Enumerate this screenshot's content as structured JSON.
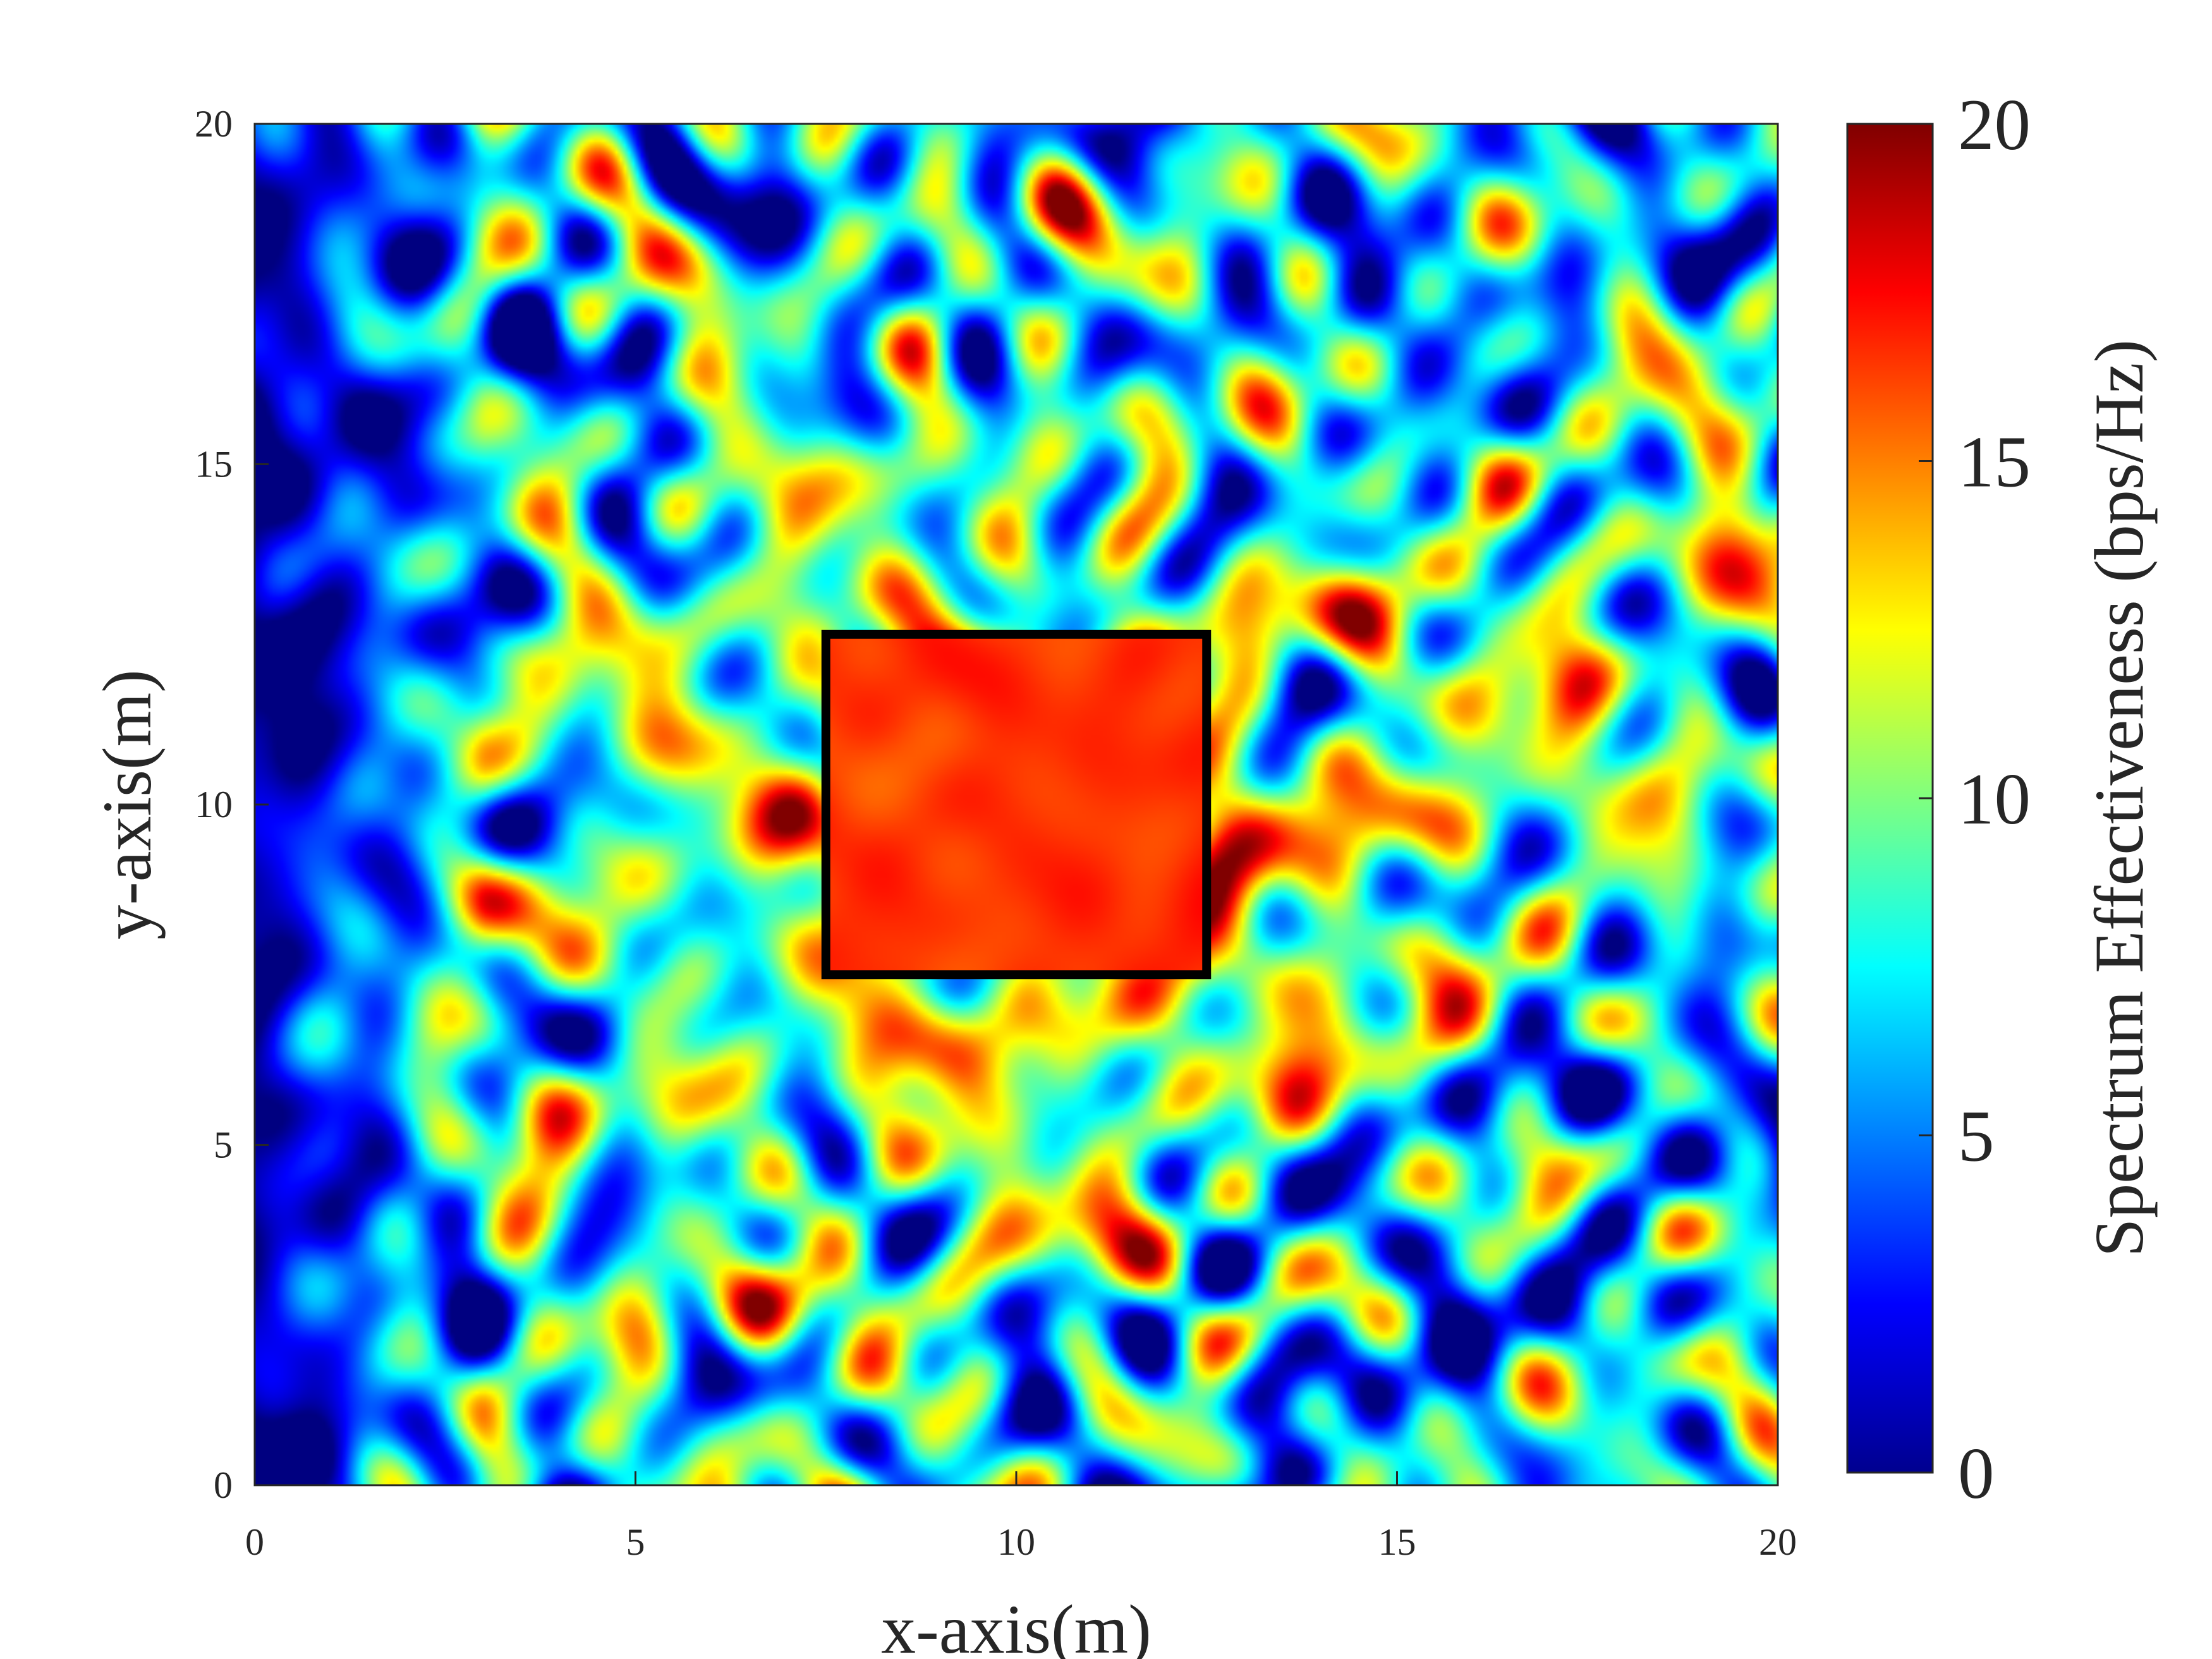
{
  "chart_data": {
    "type": "heatmap",
    "title": "",
    "xlabel": "x-axis(m)",
    "ylabel": "y-axis(m)",
    "xlim": [
      0,
      20
    ],
    "ylim": [
      0,
      20
    ],
    "xticks": [
      0,
      5,
      10,
      15,
      20
    ],
    "yticks": [
      0,
      5,
      10,
      15,
      20
    ],
    "xtick_labels": [
      "0",
      "5",
      "10",
      "15",
      "20"
    ],
    "ytick_labels": [
      "0",
      "5",
      "10",
      "15",
      "20"
    ],
    "colormap": "jet",
    "colorbar": {
      "label": "Spectrum Effectiveness (bps/Hz)",
      "range": [
        0,
        20
      ],
      "ticks": [
        0,
        5,
        10,
        15,
        20
      ],
      "tick_labels": [
        "0",
        "5",
        "10",
        "15",
        "20"
      ],
      "placement": "right"
    },
    "value_model": {
      "description": "speckled field; approximate mean value by region",
      "inside_rectangle_mean": 16.5,
      "ring_around_rectangle_mean": 11.5,
      "mid_field_mean": 7.5,
      "left_edge_mean": 0.5,
      "speckle_amplitude": 4
    },
    "annotations": [
      {
        "type": "rectangle",
        "x_range": [
          7.5,
          12.5
        ],
        "y_range": [
          7.5,
          12.5
        ],
        "edge_color": "#000000",
        "fill": "none"
      }
    ],
    "grid": false
  }
}
